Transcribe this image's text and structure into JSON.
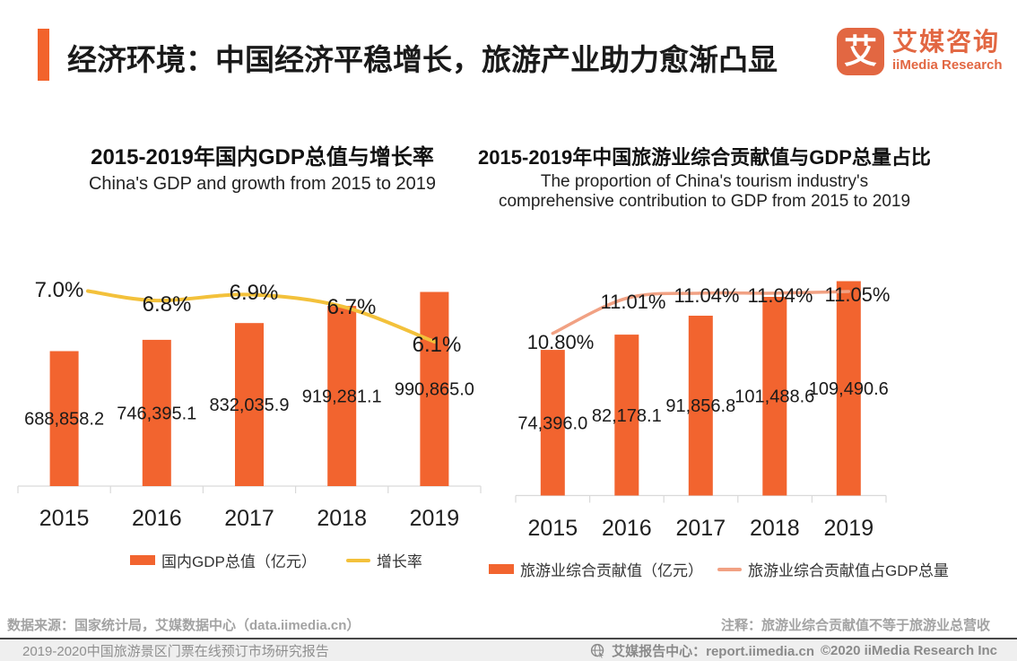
{
  "header": {
    "title": "经济环境：中国经济平稳增长，旅游产业助力愈渐凸显",
    "accent_color": "#F2632C",
    "logo": {
      "icon_char": "艾",
      "name_cn": "艾媒咨询",
      "name_en": "iiMedia Research",
      "color": "#E26742"
    }
  },
  "chart_data": [
    {
      "type": "bar",
      "title": "2015-2019年国内GDP总值与增长率",
      "subtitle_lines": [
        "China's GDP and growth from 2015 to 2019"
      ],
      "categories": [
        "2015",
        "2016",
        "2017",
        "2018",
        "2019"
      ],
      "series": [
        {
          "name": "国内GDP总值（亿元）",
          "type": "bar",
          "color": "#F2642F",
          "values": [
            688858.2,
            746395.1,
            832035.9,
            919281.1,
            990865.0
          ],
          "labels": [
            "688,858.2",
            "746,395.1",
            "832,035.9",
            "919,281.1",
            "990,865.0"
          ]
        },
        {
          "name": "增长率",
          "type": "line",
          "color": "#F3C13B",
          "values": [
            7.0,
            6.8,
            6.9,
            6.7,
            6.1
          ],
          "labels": [
            "7.0%",
            "6.8%",
            "6.9%",
            "6.7%",
            "6.1%"
          ]
        }
      ],
      "bar_ylim": [
        0,
        1100000
      ],
      "grid": false,
      "legend_position": "bottom"
    },
    {
      "type": "bar",
      "title": "2015-2019年中国旅游业综合贡献值与GDP总量占比",
      "subtitle_lines": [
        "The proportion of China's tourism industry's",
        "comprehensive contribution to GDP from 2015 to 2019"
      ],
      "categories": [
        "2015",
        "2016",
        "2017",
        "2018",
        "2019"
      ],
      "series": [
        {
          "name": "旅游业综合贡献值（亿元）",
          "type": "bar",
          "color": "#F2642F",
          "values": [
            74396.0,
            82178.1,
            91856.8,
            101488.6,
            109490.6
          ],
          "labels": [
            "74,396.0",
            "82,178.1",
            "91,856.8",
            "101,488.6",
            "109,490.6"
          ]
        },
        {
          "name": "旅游业综合贡献值占GDP总量",
          "type": "line",
          "color": "#F1A183",
          "values": [
            10.8,
            11.01,
            11.04,
            11.04,
            11.05
          ],
          "labels": [
            "10.80%",
            "11.01%",
            "11.04%",
            "11.04%",
            "11.05%"
          ]
        }
      ],
      "bar_ylim": [
        0,
        120000
      ],
      "grid": false,
      "legend_position": "bottom"
    }
  ],
  "footnotes": {
    "source": "数据来源：国家统计局，艾媒数据中心（data.iimedia.cn）",
    "note": "注释：旅游业综合贡献值不等于旅游业总营收"
  },
  "footer": {
    "report_title": "2019-2020中国旅游景区门票在线预订市场研究报告",
    "center_label": "艾媒报告中心：report.iimedia.cn",
    "copyright": "©2020  iiMedia Research  Inc"
  }
}
